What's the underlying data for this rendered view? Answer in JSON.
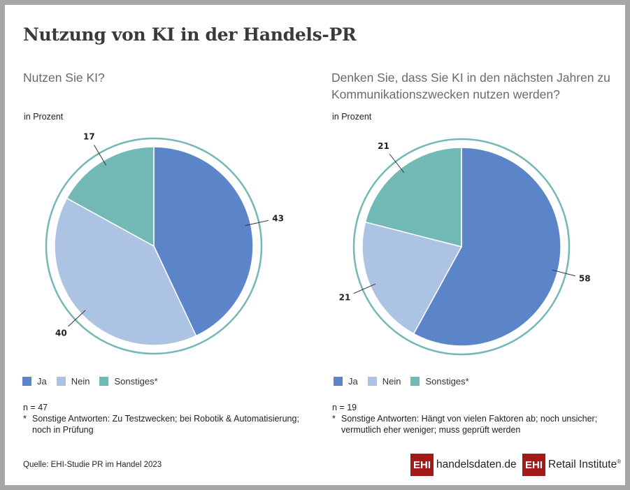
{
  "title": "Nutzung von KI in der Handels-PR",
  "colors": {
    "ja": "#5b85c8",
    "nein": "#adc3e3",
    "sonstiges": "#72b8b5",
    "ring": "#72b8b5",
    "border": "#a6a6a6",
    "brand_red": "#a31a1a"
  },
  "chart_data": [
    {
      "type": "pie",
      "title": "Nutzen Sie KI?",
      "unit_label": "in Prozent",
      "categories": [
        "Ja",
        "Nein",
        "Sonstiges*"
      ],
      "values": [
        43,
        40,
        17
      ],
      "data_labels": [
        "43",
        "40",
        "17"
      ],
      "start": "12 o'clock, clockwise",
      "legend": {
        "placement": "bottom-left",
        "entries": [
          "Ja",
          "Nein",
          "Sonstiges*"
        ]
      },
      "n_label": "n = 47",
      "footnote_star": "*",
      "footnote": "Sonstige Antworten: Zu Testzwecken; bei Robotik & Automatisierung; noch in Prüfung"
    },
    {
      "type": "pie",
      "title": "Denken Sie, dass Sie KI in den nächsten Jahren zu Kommunikationszwecken nutzen werden?",
      "unit_label": "in Prozent",
      "categories": [
        "Ja",
        "Nein",
        "Sonstiges*"
      ],
      "values": [
        58,
        21,
        21
      ],
      "data_labels": [
        "58",
        "21",
        "21"
      ],
      "start": "12 o'clock, clockwise",
      "legend": {
        "placement": "bottom-left",
        "entries": [
          "Ja",
          "Nein",
          "Sonstiges*"
        ]
      },
      "n_label": "n = 19",
      "footnote_star": "*",
      "footnote": "Sonstige Antworten: Hängt von vielen Faktoren ab; noch unsicher; vermutlich eher weniger; muss geprüft werden"
    }
  ],
  "source": "Quelle: EHI-Studie PR im Handel 2023",
  "logos": [
    {
      "box": "EHI",
      "text_main": "handelsdaten",
      "text_dot": ".",
      "text_tail": "de"
    },
    {
      "box": "EHI",
      "text_main": "Retail Institute",
      "reg": "®"
    }
  ]
}
